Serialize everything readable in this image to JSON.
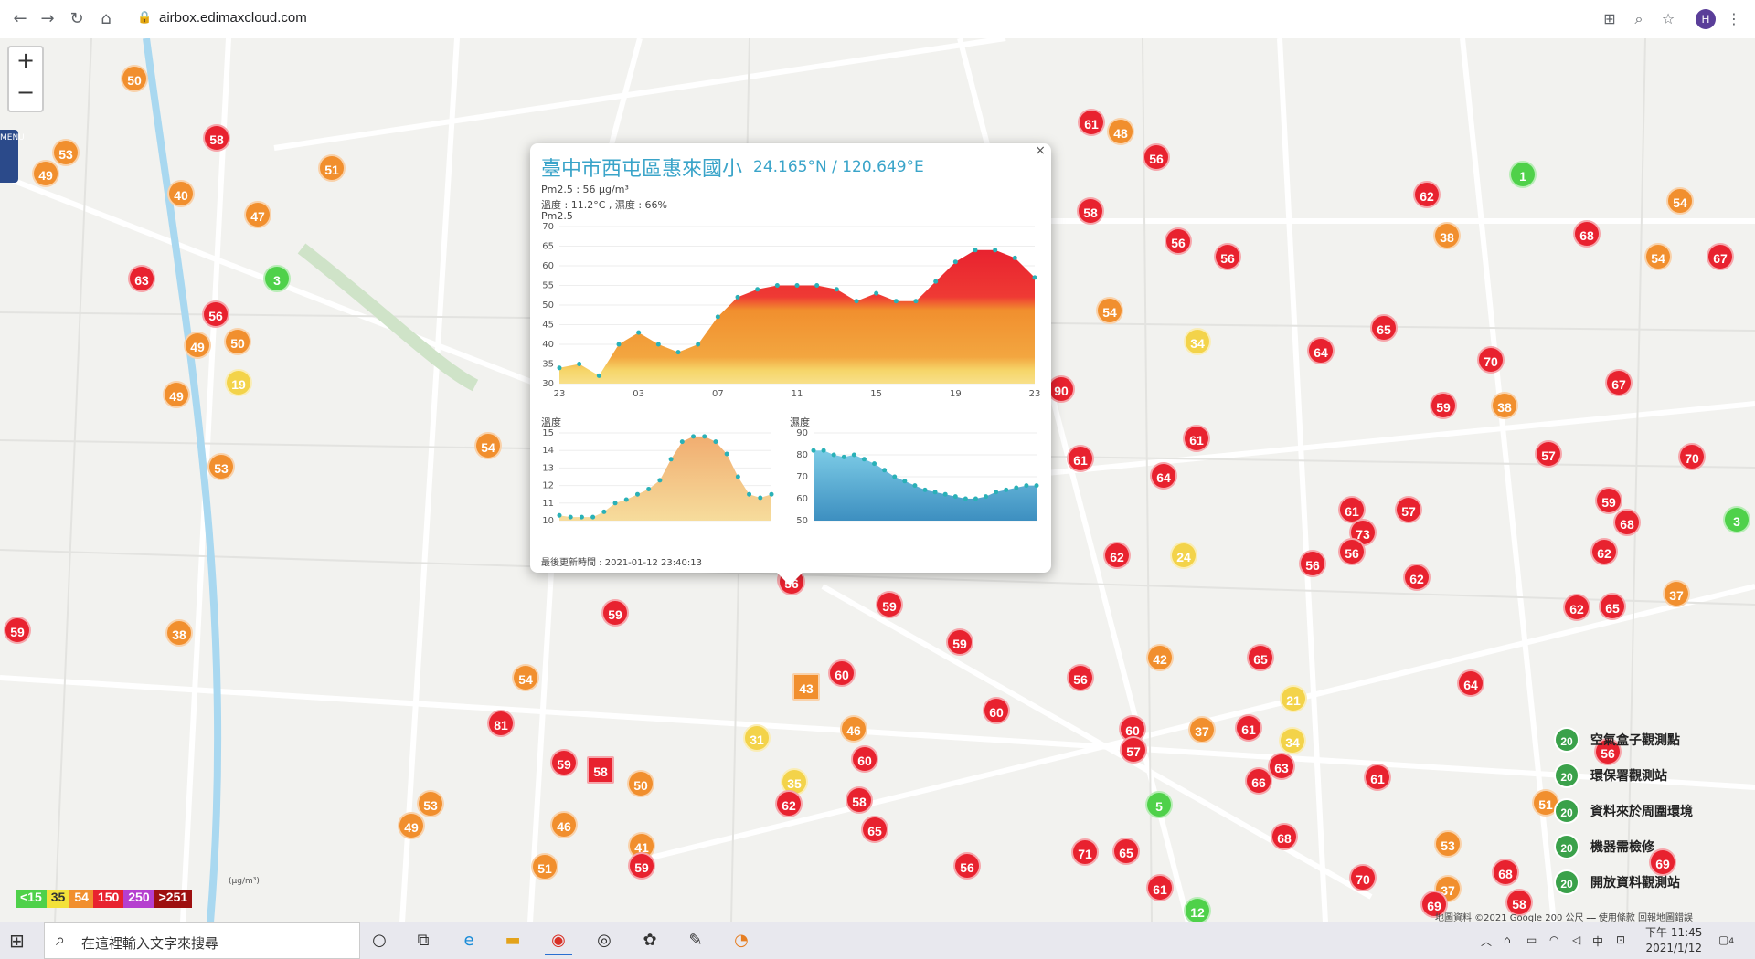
{
  "browser": {
    "url": "airbox.edimaxcloud.com",
    "profile_initial": "H"
  },
  "map": {
    "menu_label": "MENU",
    "zoom_in": "+",
    "zoom_out": "−",
    "markers": [
      {
        "v": "50",
        "c": "o",
        "x": 147,
        "y": 44
      },
      {
        "v": "53",
        "c": "o",
        "x": 72,
        "y": 125
      },
      {
        "v": "49",
        "c": "o",
        "x": 50,
        "y": 148
      },
      {
        "v": "58",
        "c": "r",
        "x": 237,
        "y": 109
      },
      {
        "v": "51",
        "c": "o",
        "x": 363,
        "y": 142
      },
      {
        "v": "40",
        "c": "o",
        "x": 198,
        "y": 170
      },
      {
        "v": "47",
        "c": "o",
        "x": 282,
        "y": 193
      },
      {
        "v": "63",
        "c": "r",
        "x": 155,
        "y": 263
      },
      {
        "v": "3",
        "c": "g",
        "x": 303,
        "y": 263
      },
      {
        "v": "56",
        "c": "r",
        "x": 236,
        "y": 302
      },
      {
        "v": "49",
        "c": "o",
        "x": 216,
        "y": 336
      },
      {
        "v": "50",
        "c": "o",
        "x": 260,
        "y": 332
      },
      {
        "v": "19",
        "c": "y",
        "x": 261,
        "y": 377
      },
      {
        "v": "49",
        "c": "o",
        "x": 193,
        "y": 390
      },
      {
        "v": "53",
        "c": "o",
        "x": 242,
        "y": 469
      },
      {
        "v": "54",
        "c": "o",
        "x": 534,
        "y": 446
      },
      {
        "v": "59",
        "c": "r",
        "x": 19,
        "y": 648
      },
      {
        "v": "38",
        "c": "o",
        "x": 196,
        "y": 651
      },
      {
        "v": "59",
        "c": "r",
        "x": 673,
        "y": 629
      },
      {
        "v": "54",
        "c": "o",
        "x": 575,
        "y": 700
      },
      {
        "v": "81",
        "c": "r",
        "x": 548,
        "y": 750
      },
      {
        "v": "59",
        "c": "r",
        "x": 617,
        "y": 793
      },
      {
        "v": "58",
        "c": "r",
        "x": 657,
        "y": 801,
        "sq": true
      },
      {
        "v": "50",
        "c": "o",
        "x": 701,
        "y": 816
      },
      {
        "v": "53",
        "c": "o",
        "x": 471,
        "y": 838
      },
      {
        "v": "49",
        "c": "o",
        "x": 450,
        "y": 862
      },
      {
        "v": "46",
        "c": "o",
        "x": 617,
        "y": 861
      },
      {
        "v": "41",
        "c": "o",
        "x": 702,
        "y": 884
      },
      {
        "v": "51",
        "c": "o",
        "x": 596,
        "y": 907
      },
      {
        "v": "59",
        "c": "r",
        "x": 702,
        "y": 906
      },
      {
        "v": "56",
        "c": "r",
        "x": 865,
        "y": 593
      },
      {
        "v": "59",
        "c": "r",
        "x": 973,
        "y": 620
      },
      {
        "v": "59",
        "c": "r",
        "x": 1050,
        "y": 661
      },
      {
        "v": "60",
        "c": "r",
        "x": 921,
        "y": 695
      },
      {
        "v": "43",
        "c": "o",
        "x": 882,
        "y": 710,
        "sq": true
      },
      {
        "v": "60",
        "c": "r",
        "x": 1090,
        "y": 736
      },
      {
        "v": "31",
        "c": "y",
        "x": 828,
        "y": 766
      },
      {
        "v": "46",
        "c": "o",
        "x": 934,
        "y": 756
      },
      {
        "v": "60",
        "c": "r",
        "x": 946,
        "y": 789
      },
      {
        "v": "35",
        "c": "y",
        "x": 869,
        "y": 814
      },
      {
        "v": "62",
        "c": "r",
        "x": 863,
        "y": 838
      },
      {
        "v": "58",
        "c": "r",
        "x": 940,
        "y": 834
      },
      {
        "v": "65",
        "c": "r",
        "x": 957,
        "y": 866
      },
      {
        "v": "56",
        "c": "r",
        "x": 1058,
        "y": 906
      },
      {
        "v": "61",
        "c": "r",
        "x": 1194,
        "y": 92
      },
      {
        "v": "48",
        "c": "o",
        "x": 1226,
        "y": 102
      },
      {
        "v": "56",
        "c": "r",
        "x": 1265,
        "y": 130
      },
      {
        "v": "58",
        "c": "r",
        "x": 1193,
        "y": 189
      },
      {
        "v": "56",
        "c": "r",
        "x": 1289,
        "y": 222
      },
      {
        "v": "56",
        "c": "r",
        "x": 1343,
        "y": 239
      },
      {
        "v": "54",
        "c": "o",
        "x": 1214,
        "y": 298
      },
      {
        "v": "34",
        "c": "y",
        "x": 1310,
        "y": 332
      },
      {
        "v": "90",
        "c": "r",
        "x": 1161,
        "y": 384
      },
      {
        "v": "61",
        "c": "r",
        "x": 1309,
        "y": 438
      },
      {
        "v": "61",
        "c": "r",
        "x": 1182,
        "y": 460
      },
      {
        "v": "64",
        "c": "r",
        "x": 1273,
        "y": 479
      },
      {
        "v": "62",
        "c": "r",
        "x": 1222,
        "y": 566
      },
      {
        "v": "24",
        "c": "y",
        "x": 1295,
        "y": 566
      },
      {
        "v": "56",
        "c": "r",
        "x": 1182,
        "y": 700
      },
      {
        "v": "42",
        "c": "o",
        "x": 1269,
        "y": 678
      },
      {
        "v": "60",
        "c": "r",
        "x": 1239,
        "y": 756
      },
      {
        "v": "57",
        "c": "r",
        "x": 1240,
        "y": 779
      },
      {
        "v": "37",
        "c": "o",
        "x": 1315,
        "y": 757
      },
      {
        "v": "61",
        "c": "r",
        "x": 1366,
        "y": 755
      },
      {
        "v": "21",
        "c": "y",
        "x": 1415,
        "y": 723
      },
      {
        "v": "34",
        "c": "y",
        "x": 1414,
        "y": 769
      },
      {
        "v": "63",
        "c": "r",
        "x": 1402,
        "y": 797
      },
      {
        "v": "66",
        "c": "r",
        "x": 1377,
        "y": 813
      },
      {
        "v": "5",
        "c": "g",
        "x": 1268,
        "y": 839
      },
      {
        "v": "71",
        "c": "r",
        "x": 1187,
        "y": 891
      },
      {
        "v": "65",
        "c": "r",
        "x": 1232,
        "y": 890
      },
      {
        "v": "61",
        "c": "r",
        "x": 1269,
        "y": 930
      },
      {
        "v": "12",
        "c": "g",
        "x": 1310,
        "y": 955
      },
      {
        "v": "68",
        "c": "r",
        "x": 1405,
        "y": 874
      },
      {
        "v": "65",
        "c": "r",
        "x": 1379,
        "y": 678
      },
      {
        "v": "1",
        "c": "g",
        "x": 1666,
        "y": 149
      },
      {
        "v": "62",
        "c": "r",
        "x": 1561,
        "y": 171
      },
      {
        "v": "38",
        "c": "o",
        "x": 1583,
        "y": 216
      },
      {
        "v": "68",
        "c": "r",
        "x": 1736,
        "y": 214
      },
      {
        "v": "54",
        "c": "o",
        "x": 1838,
        "y": 178
      },
      {
        "v": "54",
        "c": "o",
        "x": 1814,
        "y": 239
      },
      {
        "v": "67",
        "c": "r",
        "x": 1882,
        "y": 239
      },
      {
        "v": "65",
        "c": "r",
        "x": 1514,
        "y": 317
      },
      {
        "v": "64",
        "c": "r",
        "x": 1445,
        "y": 342
      },
      {
        "v": "70",
        "c": "r",
        "x": 1631,
        "y": 352
      },
      {
        "v": "67",
        "c": "r",
        "x": 1771,
        "y": 377
      },
      {
        "v": "59",
        "c": "r",
        "x": 1579,
        "y": 402
      },
      {
        "v": "38",
        "c": "o",
        "x": 1646,
        "y": 402
      },
      {
        "v": "57",
        "c": "r",
        "x": 1694,
        "y": 455
      },
      {
        "v": "70",
        "c": "r",
        "x": 1851,
        "y": 458
      },
      {
        "v": "61",
        "c": "r",
        "x": 1479,
        "y": 516
      },
      {
        "v": "57",
        "c": "r",
        "x": 1541,
        "y": 516
      },
      {
        "v": "73",
        "c": "r",
        "x": 1491,
        "y": 541
      },
      {
        "v": "56",
        "c": "r",
        "x": 1479,
        "y": 562
      },
      {
        "v": "56",
        "c": "r",
        "x": 1436,
        "y": 575
      },
      {
        "v": "62",
        "c": "r",
        "x": 1550,
        "y": 590
      },
      {
        "v": "59",
        "c": "r",
        "x": 1760,
        "y": 506
      },
      {
        "v": "68",
        "c": "r",
        "x": 1780,
        "y": 530
      },
      {
        "v": "62",
        "c": "r",
        "x": 1755,
        "y": 562
      },
      {
        "v": "3",
        "c": "g",
        "x": 1900,
        "y": 527
      },
      {
        "v": "37",
        "c": "o",
        "x": 1834,
        "y": 608
      },
      {
        "v": "62",
        "c": "r",
        "x": 1725,
        "y": 623
      },
      {
        "v": "65",
        "c": "r",
        "x": 1764,
        "y": 622
      },
      {
        "v": "64",
        "c": "r",
        "x": 1609,
        "y": 706
      },
      {
        "v": "61",
        "c": "r",
        "x": 1507,
        "y": 809
      },
      {
        "v": "51",
        "c": "o",
        "x": 1691,
        "y": 837
      },
      {
        "v": "53",
        "c": "o",
        "x": 1584,
        "y": 882
      },
      {
        "v": "70",
        "c": "r",
        "x": 1491,
        "y": 919
      },
      {
        "v": "37",
        "c": "o",
        "x": 1584,
        "y": 931
      },
      {
        "v": "68",
        "c": "r",
        "x": 1647,
        "y": 913
      },
      {
        "v": "58",
        "c": "r",
        "x": 1662,
        "y": 946
      },
      {
        "v": "69",
        "c": "r",
        "x": 1819,
        "y": 902
      },
      {
        "v": "56",
        "c": "r",
        "x": 1759,
        "y": 781
      },
      {
        "v": "69",
        "c": "r",
        "x": 1569,
        "y": 948
      }
    ]
  },
  "popup": {
    "close": "×",
    "title": "臺中市西屯區惠來國小",
    "coords": "24.165°N / 120.649°E",
    "pm_line": "Pm2.5 : 56 μg/m³",
    "temp_line": "溫度 : 11.2°C , 濕度 : 66%",
    "chart_title": "Pm2.5",
    "temp_label": "溫度",
    "humidity_label": "濕度",
    "updated": "最後更新時間 : 2021-01-12 23:40:13",
    "selected_value": "56"
  },
  "chart_data": [
    {
      "type": "area",
      "title": "Pm2.5",
      "x": [
        "23",
        "00",
        "01",
        "02",
        "03",
        "04",
        "05",
        "06",
        "07",
        "08",
        "09",
        "10",
        "11",
        "12",
        "13",
        "14",
        "15",
        "16",
        "17",
        "18",
        "19",
        "20",
        "21",
        "22",
        "23"
      ],
      "x_ticks": [
        "23",
        "03",
        "07",
        "11",
        "15",
        "19",
        "23"
      ],
      "values": [
        34,
        35,
        32,
        40,
        43,
        40,
        38,
        40,
        47,
        52,
        54,
        55,
        55,
        55,
        54,
        51,
        53,
        51,
        51,
        56,
        61,
        64,
        64,
        62,
        57
      ],
      "ylim": [
        30,
        70
      ],
      "y_ticks": [
        30,
        35,
        40,
        45,
        50,
        55,
        60,
        65,
        70
      ]
    },
    {
      "type": "area",
      "title": "溫度",
      "values": [
        10.3,
        10.2,
        10.2,
        10.2,
        10.5,
        11.0,
        11.2,
        11.5,
        11.8,
        12.3,
        13.5,
        14.5,
        14.8,
        14.8,
        14.5,
        13.8,
        12.5,
        11.5,
        11.3,
        11.5
      ],
      "ylim": [
        10,
        15
      ],
      "y_ticks": [
        10,
        11,
        12,
        13,
        14,
        15
      ]
    },
    {
      "type": "area",
      "title": "濕度",
      "values": [
        82,
        82,
        80,
        79,
        80,
        78,
        76,
        73,
        70,
        68,
        66,
        64,
        63,
        62,
        61,
        60,
        60,
        61,
        63,
        64,
        65,
        66,
        66
      ],
      "ylim": [
        50,
        90
      ],
      "y_ticks": [
        50,
        60,
        70,
        80,
        90
      ]
    }
  ],
  "legend": {
    "unit": "(μg/m³)",
    "items": [
      {
        "label": "<15",
        "color": "#4fd14a"
      },
      {
        "label": "35",
        "color": "#f3e23a"
      },
      {
        "label": "54",
        "color": "#f18f2e"
      },
      {
        "label": "150",
        "color": "#e8222f"
      },
      {
        "label": "250",
        "color": "#b53fcf"
      },
      {
        "label": ">251",
        "color": "#9e1010"
      }
    ],
    "types": [
      {
        "icon": "20",
        "label": "空氣盒子觀測點"
      },
      {
        "icon": "20",
        "label": "環保署觀測站"
      },
      {
        "icon": "20",
        "label": "資料來於周圍環境"
      },
      {
        "icon": "20",
        "label": "機器需檢修"
      },
      {
        "icon": "20",
        "label": "開放資料觀測站"
      }
    ],
    "attribution": "地圖資料 ©2021 Google   200 公尺 ⎯⎯   使用條款   回報地圖錯誤"
  },
  "taskbar": {
    "search_placeholder": "在這裡輸入文字來搜尋",
    "time": "下午 11:45",
    "date": "2021/1/12",
    "ime": "中",
    "notif_count": "4"
  }
}
